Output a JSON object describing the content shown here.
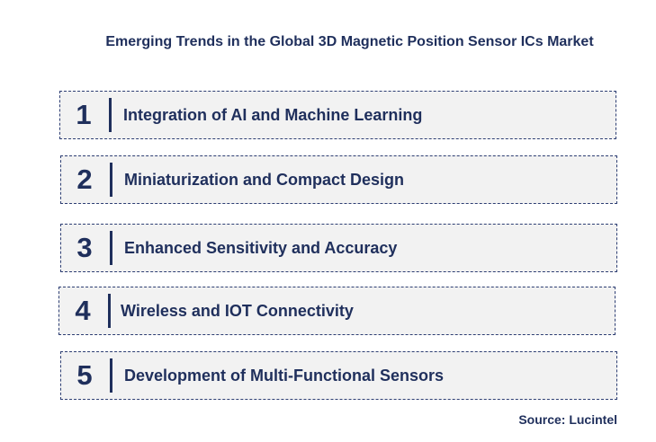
{
  "title": "Emerging Trends in the Global 3D Magnetic Position Sensor ICs Market",
  "trends": [
    {
      "number": "1",
      "label": "Integration of AI and Machine Learning"
    },
    {
      "number": "2",
      "label": "Miniaturization and Compact Design"
    },
    {
      "number": "3",
      "label": "Enhanced Sensitivity and Accuracy"
    },
    {
      "number": "4",
      "label": "Wireless and IOT Connectivity"
    },
    {
      "number": "5",
      "label": "Development of Multi-Functional Sensors"
    }
  ],
  "source": "Source: Lucintel",
  "colors": {
    "text": "#1f2f5c",
    "box_fill": "#f2f2f2",
    "box_border": "#2d3e73"
  }
}
